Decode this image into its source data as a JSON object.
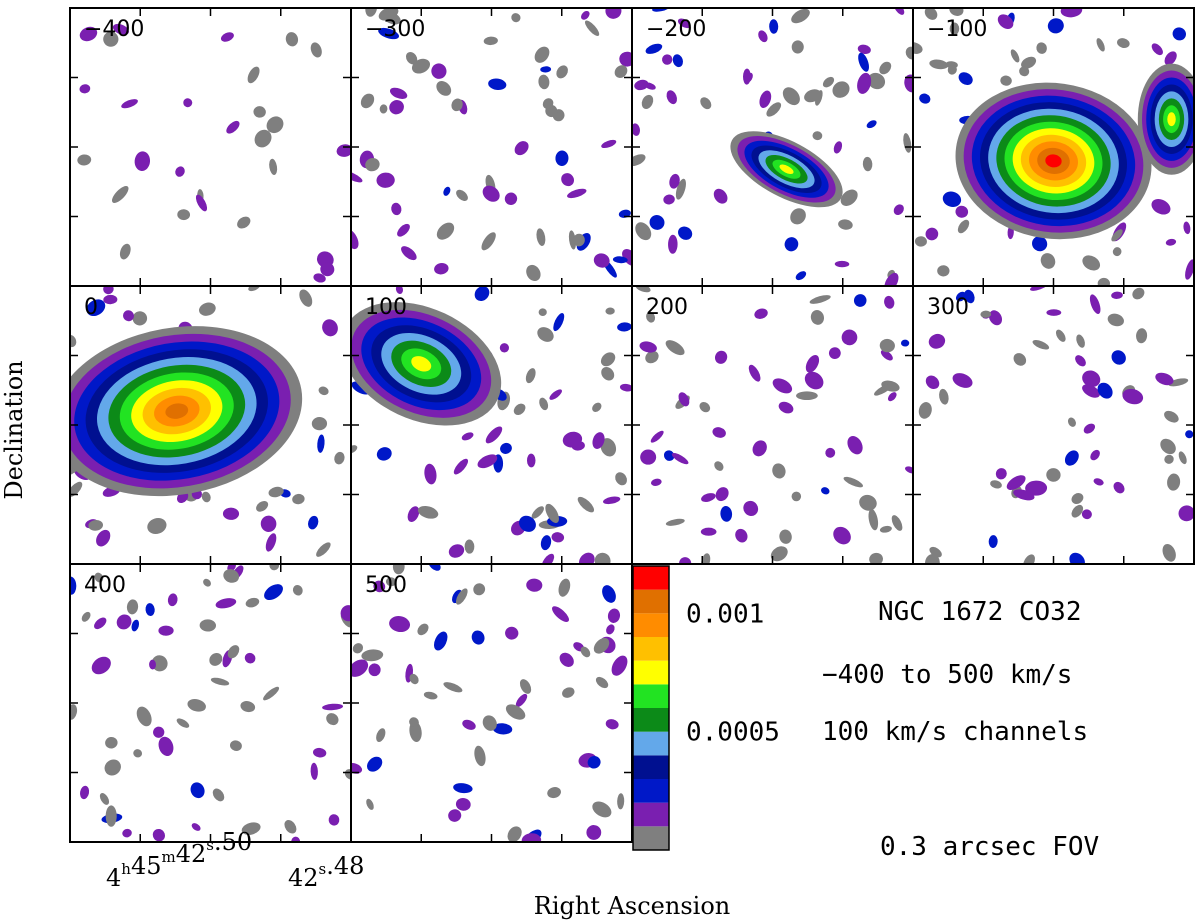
{
  "chart_data": {
    "type": "heatmap",
    "title": "NGC 1672 CO32",
    "description_lines": [
      "−400 to 500 km/s",
      "100 km/s channels",
      "0.3 arcsec FOV"
    ],
    "xlabel": "Right Ascension",
    "ylabel": "Declination",
    "x_tick_labels": [
      {
        "h": "4",
        "h_unit": "h",
        "m": "45",
        "m_unit": "m",
        "s": "42",
        "s_unit": "s",
        "frac": ".50"
      },
      {
        "s": "42",
        "s_unit": "s",
        "frac": ".48"
      }
    ],
    "channels": [
      {
        "velocity": "−400"
      },
      {
        "velocity": "−300"
      },
      {
        "velocity": "−200"
      },
      {
        "velocity": "−100"
      },
      {
        "velocity": "0"
      },
      {
        "velocity": "100"
      },
      {
        "velocity": "200"
      },
      {
        "velocity": "300"
      },
      {
        "velocity": "400"
      },
      {
        "velocity": "500"
      }
    ],
    "colorbar": {
      "labels": [
        {
          "text": "0.001",
          "value": 0.001
        },
        {
          "text": "0.0005",
          "value": 0.0005
        }
      ],
      "levels": [
        {
          "level": 1,
          "color": "#7f7f7f"
        },
        {
          "level": 2,
          "color": "#7a1fb0"
        },
        {
          "level": 3,
          "color": "#0018c8"
        },
        {
          "level": 4,
          "color": "#001090"
        },
        {
          "level": 5,
          "color": "#63a8ea"
        },
        {
          "level": 6,
          "color": "#0c8a18"
        },
        {
          "level": 7,
          "color": "#22e322"
        },
        {
          "level": 8,
          "color": "#ffff00"
        },
        {
          "level": 9,
          "color": "#ffc000"
        },
        {
          "level": 10,
          "color": "#ff8c00"
        },
        {
          "level": 11,
          "color": "#e07000"
        },
        {
          "level": 12,
          "color": "#ff0000"
        }
      ]
    }
  }
}
